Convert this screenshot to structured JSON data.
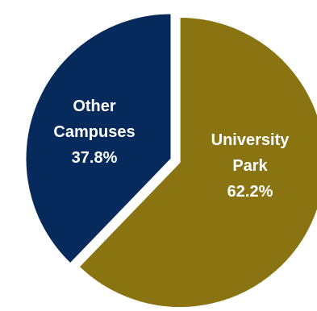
{
  "chart_data": {
    "type": "pie",
    "slices": [
      {
        "label_lines": [
          "University",
          "Park",
          "62.2%"
        ],
        "value": 62.2,
        "color": "#8a7412",
        "exploded": true
      },
      {
        "label_lines": [
          "Other",
          "Campuses",
          "37.8%"
        ],
        "value": 37.8,
        "color": "#062a5b",
        "exploded": false
      }
    ],
    "legend": "none"
  }
}
